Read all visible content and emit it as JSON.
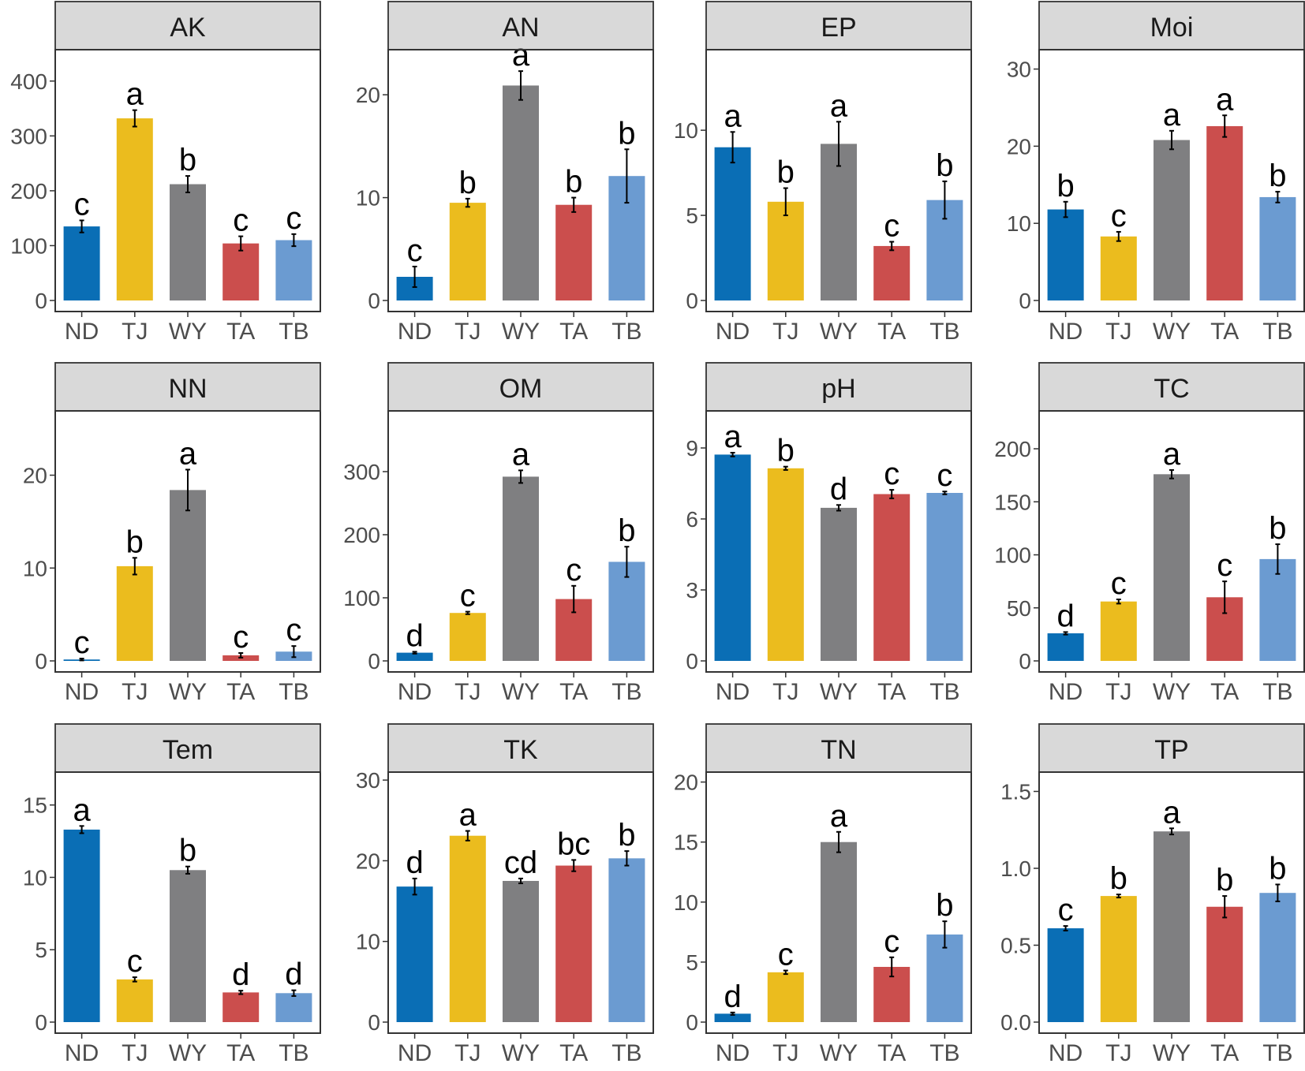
{
  "chart_data": {
    "type": "bar",
    "layout": "faceted 3x4 grid",
    "categories": [
      "ND",
      "TJ",
      "WY",
      "TA",
      "TB"
    ],
    "colors": [
      "#0A6EB5",
      "#EBBC1E",
      "#7F7F81",
      "#CB4E4D",
      "#6B9BD1"
    ],
    "panels": [
      {
        "title": "AK",
        "ylim": [
          0,
          450
        ],
        "yticks": [
          0,
          100,
          200,
          300,
          400
        ],
        "values": [
          135,
          332,
          212,
          104,
          110
        ],
        "errors": [
          11,
          15,
          15,
          13,
          11
        ],
        "letters": [
          "c",
          "a",
          "b",
          "c",
          "c"
        ]
      },
      {
        "title": "AN",
        "ylim": [
          0,
          24
        ],
        "yticks": [
          0,
          10,
          20
        ],
        "values": [
          2.3,
          9.5,
          20.9,
          9.3,
          12.1
        ],
        "errors": [
          1.0,
          0.4,
          1.4,
          0.7,
          2.6
        ],
        "letters": [
          "c",
          "b",
          "a",
          "b",
          "b"
        ]
      },
      {
        "title": "EP",
        "ylim": [
          0,
          14.5
        ],
        "yticks": [
          0,
          5,
          10
        ],
        "values": [
          9.0,
          5.8,
          9.2,
          3.2,
          5.9
        ],
        "errors": [
          0.9,
          0.8,
          1.3,
          0.25,
          1.1
        ],
        "letters": [
          "a",
          "b",
          "a",
          "c",
          "b"
        ]
      },
      {
        "title": "Moi",
        "ylim": [
          0,
          32
        ],
        "yticks": [
          0,
          10,
          20,
          30
        ],
        "values": [
          11.8,
          8.3,
          20.8,
          22.6,
          13.4
        ],
        "errors": [
          1.0,
          0.6,
          1.2,
          1.4,
          0.7
        ],
        "letters": [
          "b",
          "c",
          "a",
          "a",
          "b"
        ]
      },
      {
        "title": "NN",
        "ylim": [
          0,
          26.5
        ],
        "yticks": [
          0,
          10,
          20
        ],
        "values": [
          0.15,
          10.2,
          18.4,
          0.6,
          1.0
        ],
        "errors": [
          0.1,
          0.9,
          2.2,
          0.25,
          0.6
        ],
        "letters": [
          "c",
          "b",
          "a",
          "c",
          "c"
        ]
      },
      {
        "title": "OM",
        "ylim": [
          0,
          390
        ],
        "yticks": [
          0,
          100,
          200,
          300
        ],
        "values": [
          13,
          76,
          292,
          98,
          157
        ],
        "errors": [
          1.5,
          2,
          10,
          21,
          24
        ],
        "letters": [
          "d",
          "c",
          "a",
          "c",
          "b"
        ]
      },
      {
        "title": "pH",
        "ylim": [
          0,
          10.4
        ],
        "yticks": [
          0,
          3,
          6,
          9
        ],
        "values": [
          8.72,
          8.14,
          6.47,
          7.05,
          7.1
        ],
        "errors": [
          0.08,
          0.07,
          0.12,
          0.18,
          0.06
        ],
        "letters": [
          "a",
          "b",
          "d",
          "c",
          "c"
        ]
      },
      {
        "title": "TC",
        "ylim": [
          0,
          232
        ],
        "yticks": [
          0,
          50,
          100,
          150,
          200
        ],
        "values": [
          26,
          56,
          176,
          60,
          96
        ],
        "errors": [
          1.2,
          2,
          4,
          15,
          14
        ],
        "letters": [
          "d",
          "c",
          "a",
          "c",
          "b"
        ]
      },
      {
        "title": "Tem",
        "ylim": [
          0,
          17
        ],
        "yticks": [
          0,
          5,
          10,
          15
        ],
        "values": [
          13.3,
          2.95,
          10.5,
          2.05,
          2.0
        ],
        "errors": [
          0.25,
          0.15,
          0.25,
          0.12,
          0.2
        ],
        "letters": [
          "a",
          "c",
          "b",
          "d",
          "d"
        ]
      },
      {
        "title": "TK",
        "ylim": [
          0,
          30.5
        ],
        "yticks": [
          0,
          10,
          20,
          30
        ],
        "values": [
          16.8,
          23.1,
          17.5,
          19.4,
          20.3
        ],
        "errors": [
          1.0,
          0.6,
          0.3,
          0.7,
          0.9
        ],
        "letters": [
          "d",
          "a",
          "cd",
          "bc",
          "b"
        ]
      },
      {
        "title": "TN",
        "ylim": [
          0,
          20.5
        ],
        "yticks": [
          0,
          5,
          10,
          15,
          20
        ],
        "values": [
          0.7,
          4.15,
          15.0,
          4.6,
          7.3
        ],
        "errors": [
          0.1,
          0.15,
          0.85,
          0.8,
          1.1
        ],
        "letters": [
          "d",
          "c",
          "a",
          "c",
          "b"
        ]
      },
      {
        "title": "TP",
        "ylim": [
          0,
          1.6
        ],
        "yticks": [
          "0.0",
          "0.5",
          "1.0",
          "1.5"
        ],
        "values": [
          0.61,
          0.82,
          1.24,
          0.75,
          0.84
        ],
        "errors": [
          0.015,
          0.01,
          0.02,
          0.07,
          0.055
        ],
        "letters": [
          "c",
          "b",
          "a",
          "b",
          "b"
        ]
      }
    ]
  }
}
